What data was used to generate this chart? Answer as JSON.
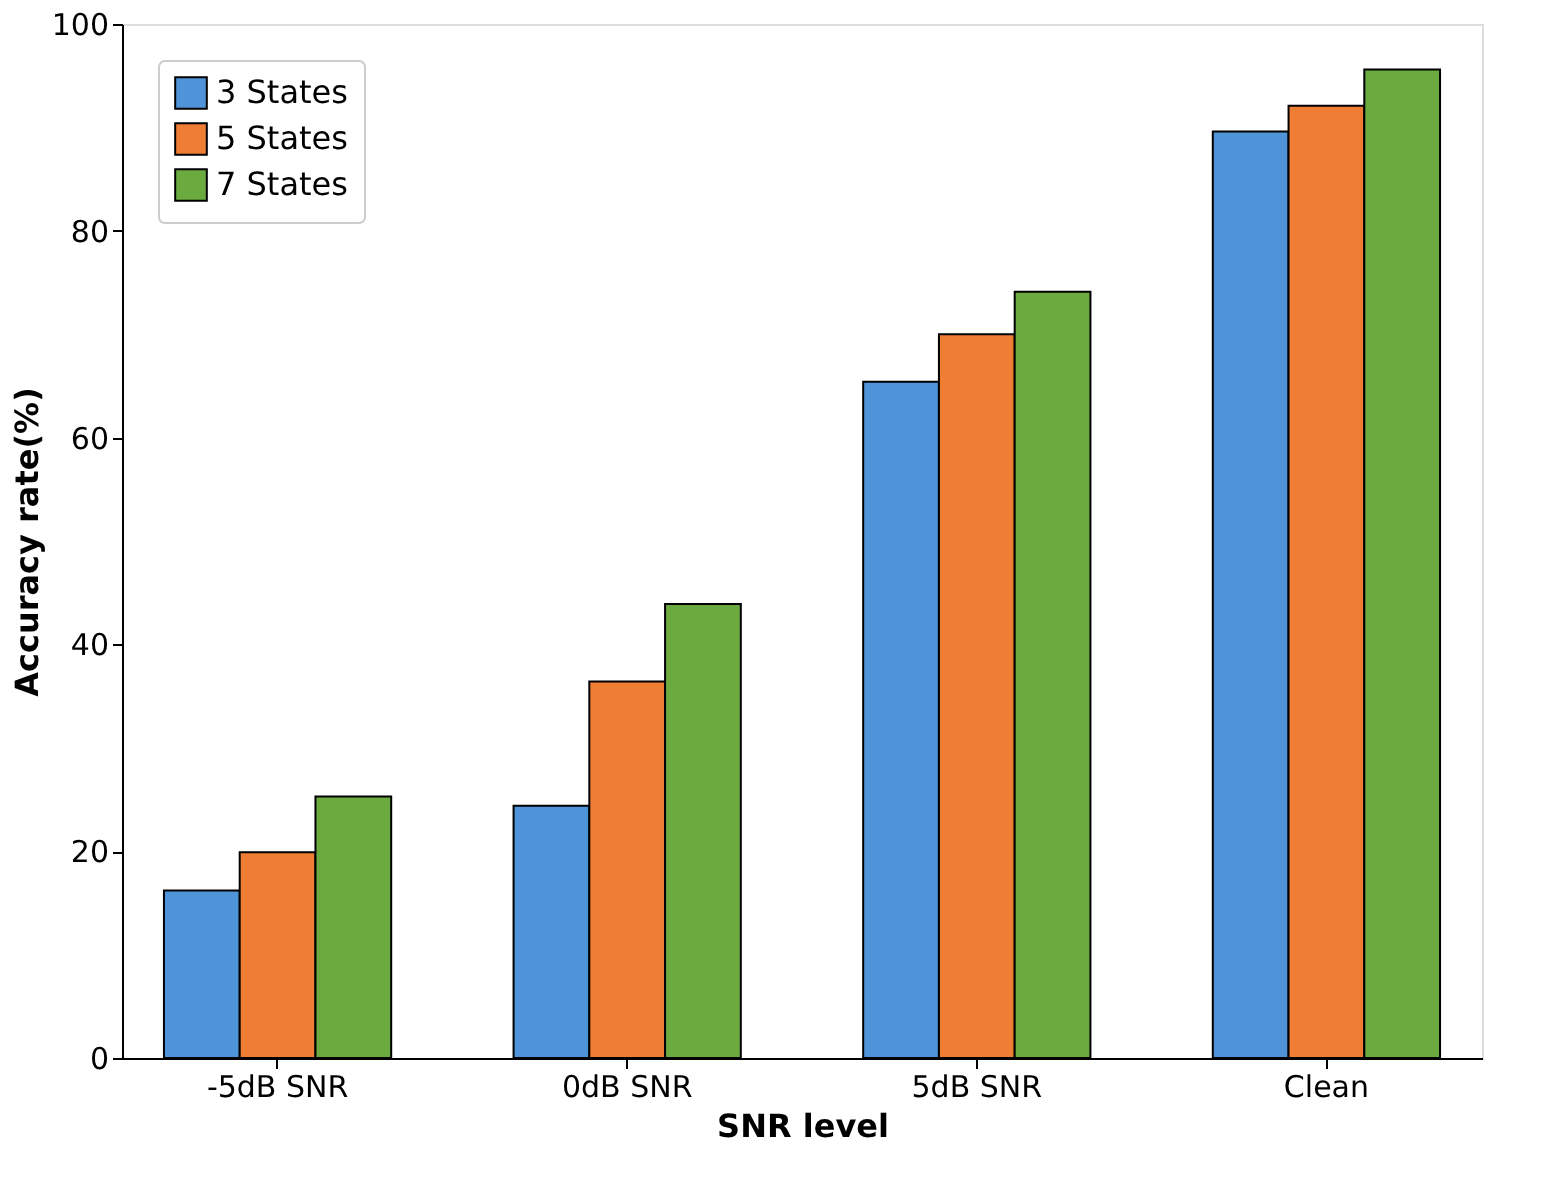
{
  "chart_data": {
    "type": "bar",
    "xlabel": "SNR level",
    "ylabel": "Accuracy rate(%)",
    "categories": [
      "-5dB SNR",
      "0dB SNR",
      "5dB SNR",
      "Clean"
    ],
    "series": [
      {
        "name": "3 States",
        "color": "#4f93d8",
        "values": [
          16.2,
          24.4,
          65.4,
          89.6
        ]
      },
      {
        "name": "5 States",
        "color": "#f07d34",
        "values": [
          19.9,
          36.4,
          70.0,
          92.1
        ]
      },
      {
        "name": "7 States",
        "color": "#6aaa3f",
        "values": [
          25.3,
          43.9,
          74.1,
          95.6
        ]
      }
    ],
    "ylim": [
      0,
      100
    ],
    "yticks": [
      0,
      20,
      40,
      60,
      80,
      100
    ],
    "grid": false,
    "legend": "top left"
  }
}
